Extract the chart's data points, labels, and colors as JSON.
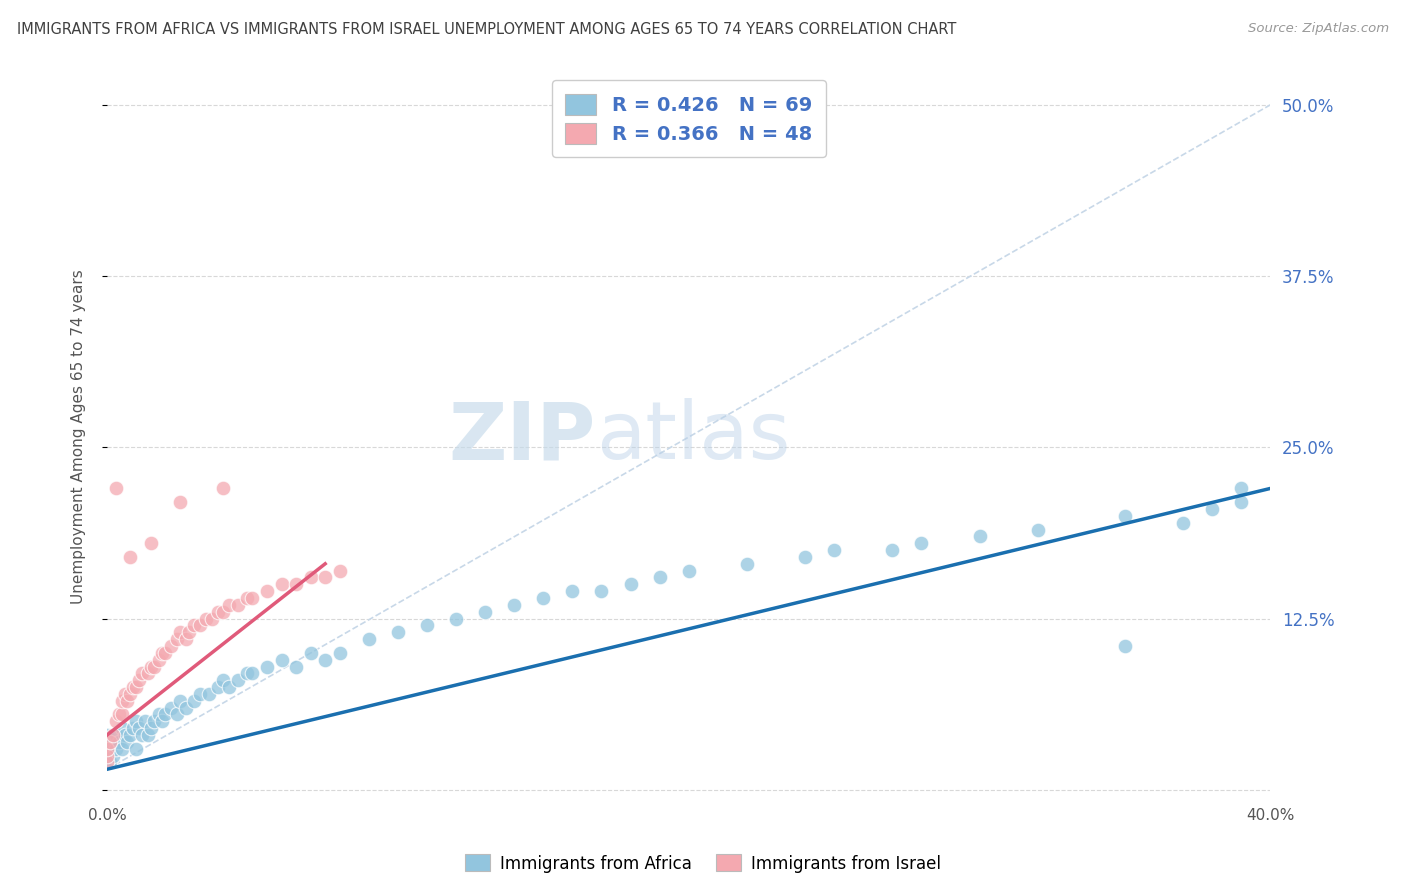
{
  "title": "IMMIGRANTS FROM AFRICA VS IMMIGRANTS FROM ISRAEL UNEMPLOYMENT AMONG AGES 65 TO 74 YEARS CORRELATION CHART",
  "source": "Source: ZipAtlas.com",
  "ylabel": "Unemployment Among Ages 65 to 74 years",
  "xlim": [
    0.0,
    0.4
  ],
  "ylim": [
    -0.005,
    0.52
  ],
  "xticks": [
    0.0,
    0.1,
    0.2,
    0.3,
    0.4
  ],
  "xtick_labels": [
    "0.0%",
    "",
    "",
    "",
    "40.0%"
  ],
  "ytick_labels_right": [
    "12.5%",
    "25.0%",
    "37.5%",
    "50.0%"
  ],
  "yticks_right": [
    0.125,
    0.25,
    0.375,
    0.5
  ],
  "yticks_left": [
    0.0,
    0.125,
    0.25,
    0.375,
    0.5
  ],
  "legend_africa_R": "0.426",
  "legend_africa_N": "69",
  "legend_israel_R": "0.366",
  "legend_israel_N": "48",
  "legend_label_africa": "Immigrants from Africa",
  "legend_label_israel": "Immigrants from Israel",
  "color_africa": "#92c5de",
  "color_israel": "#f4a9b0",
  "color_africa_line": "#1a6faf",
  "color_israel_line": "#e05a7a",
  "watermark_zip": "ZIP",
  "watermark_atlas": "atlas",
  "africa_scatter_x": [
    0.0,
    0.0,
    0.0,
    0.001,
    0.002,
    0.003,
    0.003,
    0.004,
    0.005,
    0.005,
    0.006,
    0.007,
    0.008,
    0.009,
    0.01,
    0.01,
    0.011,
    0.012,
    0.013,
    0.014,
    0.015,
    0.016,
    0.018,
    0.019,
    0.02,
    0.022,
    0.024,
    0.025,
    0.027,
    0.03,
    0.032,
    0.035,
    0.038,
    0.04,
    0.042,
    0.045,
    0.048,
    0.05,
    0.055,
    0.06,
    0.065,
    0.07,
    0.075,
    0.08,
    0.09,
    0.1,
    0.11,
    0.12,
    0.13,
    0.14,
    0.15,
    0.16,
    0.17,
    0.18,
    0.19,
    0.2,
    0.22,
    0.24,
    0.25,
    0.27,
    0.28,
    0.3,
    0.32,
    0.35,
    0.37,
    0.38,
    0.39,
    0.39,
    0.35
  ],
  "africa_scatter_y": [
    0.02,
    0.03,
    0.04,
    0.02,
    0.025,
    0.03,
    0.04,
    0.035,
    0.03,
    0.045,
    0.04,
    0.035,
    0.04,
    0.045,
    0.03,
    0.05,
    0.045,
    0.04,
    0.05,
    0.04,
    0.045,
    0.05,
    0.055,
    0.05,
    0.055,
    0.06,
    0.055,
    0.065,
    0.06,
    0.065,
    0.07,
    0.07,
    0.075,
    0.08,
    0.075,
    0.08,
    0.085,
    0.085,
    0.09,
    0.095,
    0.09,
    0.1,
    0.095,
    0.1,
    0.11,
    0.115,
    0.12,
    0.125,
    0.13,
    0.135,
    0.14,
    0.145,
    0.145,
    0.15,
    0.155,
    0.16,
    0.165,
    0.17,
    0.175,
    0.175,
    0.18,
    0.185,
    0.19,
    0.2,
    0.195,
    0.205,
    0.21,
    0.22,
    0.105
  ],
  "israel_scatter_x": [
    0.0,
    0.0,
    0.0,
    0.001,
    0.002,
    0.003,
    0.004,
    0.005,
    0.005,
    0.006,
    0.007,
    0.008,
    0.009,
    0.01,
    0.011,
    0.012,
    0.014,
    0.015,
    0.016,
    0.018,
    0.019,
    0.02,
    0.022,
    0.024,
    0.025,
    0.027,
    0.028,
    0.03,
    0.032,
    0.034,
    0.036,
    0.038,
    0.04,
    0.042,
    0.045,
    0.048,
    0.05,
    0.055,
    0.06,
    0.065,
    0.07,
    0.075,
    0.08,
    0.04,
    0.025,
    0.015,
    0.008,
    0.003
  ],
  "israel_scatter_y": [
    0.02,
    0.025,
    0.03,
    0.035,
    0.04,
    0.05,
    0.055,
    0.055,
    0.065,
    0.07,
    0.065,
    0.07,
    0.075,
    0.075,
    0.08,
    0.085,
    0.085,
    0.09,
    0.09,
    0.095,
    0.1,
    0.1,
    0.105,
    0.11,
    0.115,
    0.11,
    0.115,
    0.12,
    0.12,
    0.125,
    0.125,
    0.13,
    0.13,
    0.135,
    0.135,
    0.14,
    0.14,
    0.145,
    0.15,
    0.15,
    0.155,
    0.155,
    0.16,
    0.22,
    0.21,
    0.18,
    0.17,
    0.22
  ],
  "africa_line_x": [
    0.0,
    0.4
  ],
  "africa_line_y": [
    0.015,
    0.22
  ],
  "israel_line_x": [
    0.0,
    0.075
  ],
  "israel_line_y": [
    0.04,
    0.165
  ],
  "trend_line_x": [
    0.0,
    0.4
  ],
  "trend_line_y": [
    0.015,
    0.5
  ],
  "trend_line_color": "#c8d8e8",
  "background_color": "#ffffff",
  "grid_color": "#d8d8d8",
  "title_color": "#404040",
  "source_color": "#999999",
  "axis_color": "#555555",
  "tick_color_right": "#4472C4",
  "tick_color_bottom": "#555555"
}
